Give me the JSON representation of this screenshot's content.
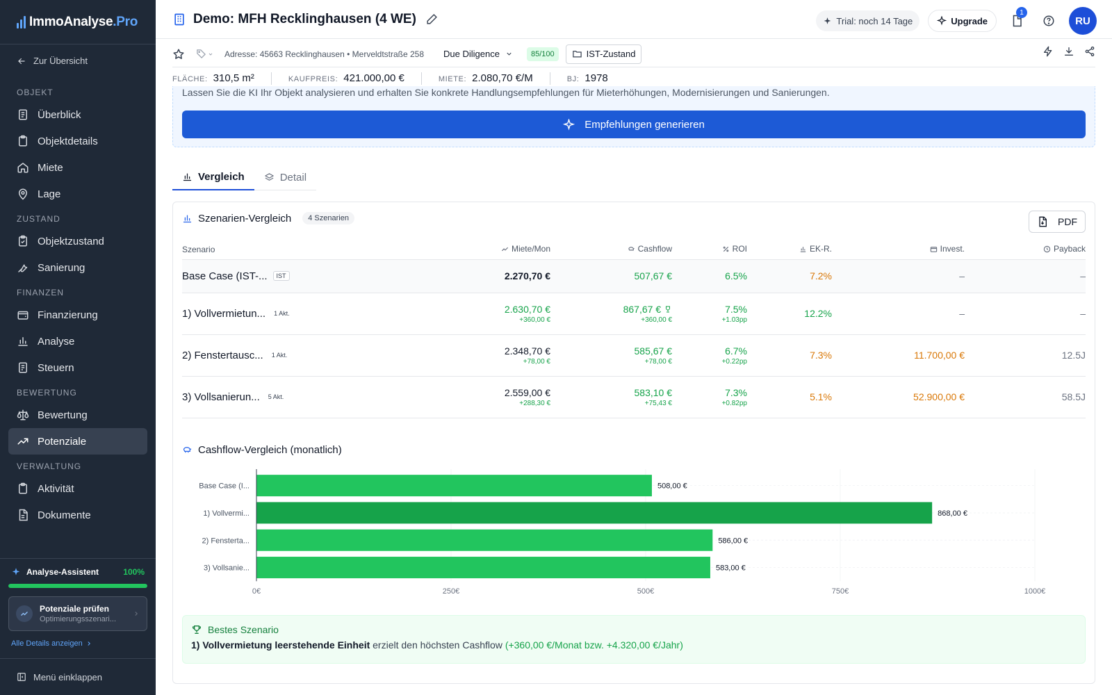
{
  "brand": {
    "name": "ImmoAnalyse",
    "suffix": ".Pro"
  },
  "sidebar": {
    "back_label": "Zur Übersicht",
    "sections": [
      {
        "title": "OBJEKT",
        "items": [
          {
            "label": "Überblick",
            "icon": "eye-icon"
          },
          {
            "label": "Objektdetails",
            "icon": "clipboard-icon"
          },
          {
            "label": "Miete",
            "icon": "home-icon"
          },
          {
            "label": "Lage",
            "icon": "map-pin-icon"
          }
        ]
      },
      {
        "title": "ZUSTAND",
        "items": [
          {
            "label": "Objektzustand",
            "icon": "clipboard-check-icon"
          },
          {
            "label": "Sanierung",
            "icon": "wrench-icon"
          }
        ]
      },
      {
        "title": "FINANZEN",
        "items": [
          {
            "label": "Finanzierung",
            "icon": "wallet-icon"
          },
          {
            "label": "Analyse",
            "icon": "bar-chart-icon"
          },
          {
            "label": "Steuern",
            "icon": "receipt-icon"
          }
        ]
      },
      {
        "title": "BEWERTUNG",
        "items": [
          {
            "label": "Bewertung",
            "icon": "scale-icon"
          },
          {
            "label": "Potenziale",
            "icon": "trending-up-icon",
            "active": true
          }
        ]
      },
      {
        "title": "VERWALTUNG",
        "items": [
          {
            "label": "Aktivität",
            "icon": "clipboard-icon"
          },
          {
            "label": "Dokumente",
            "icon": "file-icon"
          }
        ]
      }
    ],
    "assistant": {
      "title": "Analyse-Assistent",
      "percent": "100%",
      "progress": 1.0,
      "card_title": "Potenziale prüfen",
      "card_sub": "Optimierungsszenari...",
      "link": "Alle Details anzeigen"
    },
    "collapse_label": "Menü einklappen"
  },
  "header": {
    "title": "Demo: MFH Recklinghausen (4 WE)",
    "trial": "Trial: noch 14 Tage",
    "upgrade": "Upgrade",
    "notif_count": "1",
    "avatar": "RU"
  },
  "subbar": {
    "address": "Adresse: 45663 Recklinghausen • Merveldtstraße 258",
    "phase": "Due Diligence",
    "score": "85/100",
    "state": "IST-Zustand"
  },
  "metrics": [
    {
      "label": "Fläche:",
      "value": "310,5 m²"
    },
    {
      "label": "Kaufpreis:",
      "value": "421.000,00 €"
    },
    {
      "label": "Miete:",
      "value": "2.080,70 €/M"
    },
    {
      "label": "BJ:",
      "value": "1978"
    }
  ],
  "ki": {
    "description": "Lassen Sie die KI Ihr Objekt analysieren und erhalten Sie konkrete Handlungsempfehlungen für Mieterhöhungen, Modernisierungen und Sanierungen.",
    "button": "Empfehlungen generieren"
  },
  "tabs": [
    {
      "label": "Vergleich",
      "active": true
    },
    {
      "label": "Detail"
    }
  ],
  "comparison": {
    "title": "Szenarien-Vergleich",
    "count": "4 Szenarien",
    "pdf": "PDF",
    "headers": [
      "Szenario",
      "Miete/Mon",
      "Cashflow",
      "ROI",
      "EK-R.",
      "Invest.",
      "Payback"
    ],
    "rows": [
      {
        "name": "Base Case (IST-...",
        "tag": "IST",
        "miete": "2.270,70 €",
        "miete_d": "",
        "cashflow": "507,67 €",
        "cashflow_d": "",
        "roi": "6.5%",
        "roi_d": "",
        "ekr": "7.2%",
        "invest": "–",
        "payback": "–"
      },
      {
        "name": "1) Vollvermietun...",
        "tag": "1 Akt.",
        "miete": "2.630,70 €",
        "miete_d": "+360,00 €",
        "cashflow": "867,67 €",
        "cashflow_d": "+360,00 €",
        "roi": "7.5%",
        "roi_d": "+1.03pp",
        "ekr": "12.2%",
        "invest": "–",
        "payback": "–",
        "best": true
      },
      {
        "name": "2) Fenstertausc...",
        "tag": "1 Akt.",
        "miete": "2.348,70 €",
        "miete_d": "+78,00 €",
        "cashflow": "585,67 €",
        "cashflow_d": "+78,00 €",
        "roi": "6.7%",
        "roi_d": "+0.22pp",
        "ekr": "7.3%",
        "invest": "11.700,00 €",
        "payback": "12.5J"
      },
      {
        "name": "3) Vollsanierun...",
        "tag": "5 Akt.",
        "miete": "2.559,00 €",
        "miete_d": "+288,30 €",
        "cashflow": "583,10 €",
        "cashflow_d": "+75,43 €",
        "roi": "7.3%",
        "roi_d": "+0.82pp",
        "ekr": "5.1%",
        "invest": "52.900,00 €",
        "payback": "58.5J"
      }
    ]
  },
  "cashflow_title": "Cashflow-Vergleich (monatlich)",
  "chart_data": {
    "type": "bar",
    "orientation": "horizontal",
    "categories": [
      "Base Case (I...",
      "1) Vollvermi...",
      "2) Fensterta...",
      "3) Vollsanie..."
    ],
    "values": [
      508,
      868,
      586,
      583
    ],
    "value_labels": [
      "508,00 €",
      "868,00 €",
      "586,00 €",
      "583,00 €"
    ],
    "highlight_index": 1,
    "xlim": [
      0,
      1000
    ],
    "xticks": [
      "0€",
      "250€",
      "500€",
      "750€",
      "1000€"
    ],
    "colors": {
      "bar": "#22c55e",
      "highlight": "#16a34a"
    },
    "grid": true
  },
  "best": {
    "title": "Bestes Szenario",
    "name": "1) Vollvermietung leerstehende Einheit",
    "text": " erzielt den höchsten Cashflow ",
    "delta": "(+360,00 €/Monat bzw. +4.320,00 €/Jahr)"
  }
}
